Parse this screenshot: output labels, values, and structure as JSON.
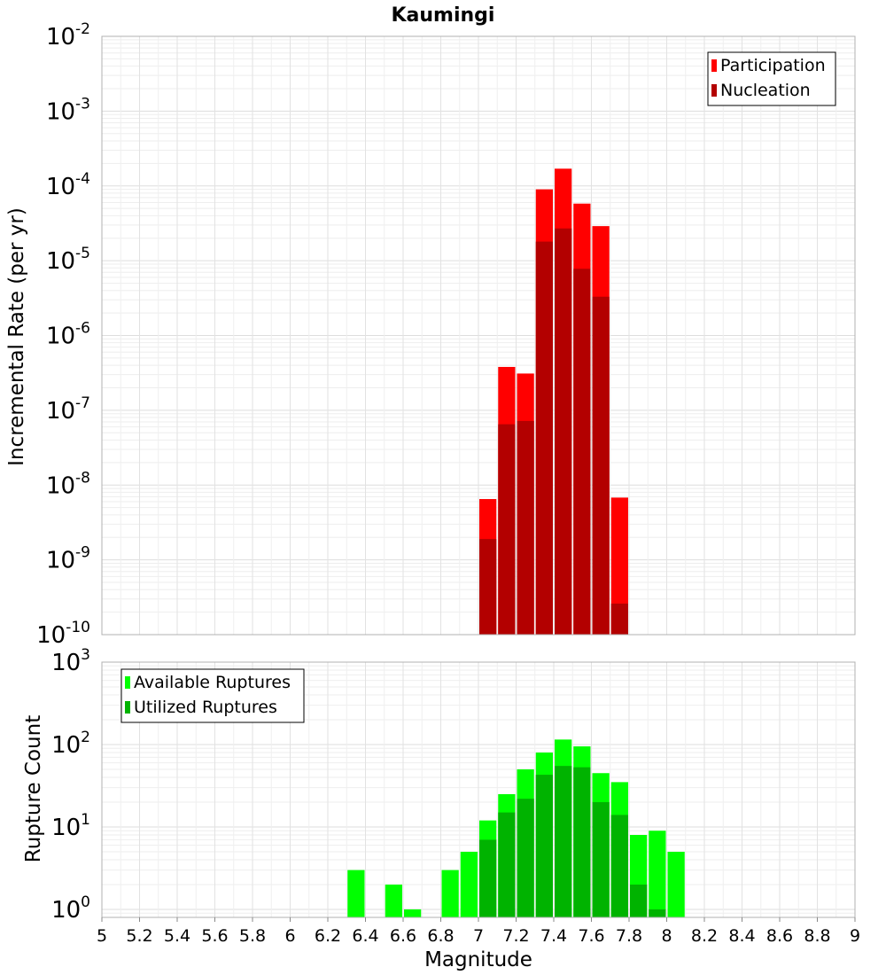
{
  "chart_data": [
    {
      "type": "bar",
      "title": "Kaumingi",
      "xlabel": "",
      "ylabel": "Incremental Rate (per yr)",
      "yscale": "log",
      "ylim": [
        1e-10,
        0.01
      ],
      "xlim": [
        5,
        9
      ],
      "bin_width": 0.1,
      "grid": true,
      "legend_position": "top-right",
      "y_tick_labels": [
        {
          "base": "10",
          "exp": "-10"
        },
        {
          "base": "10",
          "exp": "-9"
        },
        {
          "base": "10",
          "exp": "-8"
        },
        {
          "base": "10",
          "exp": "-7"
        },
        {
          "base": "10",
          "exp": "-6"
        },
        {
          "base": "10",
          "exp": "-5"
        },
        {
          "base": "10",
          "exp": "-4"
        },
        {
          "base": "10",
          "exp": "-3"
        },
        {
          "base": "10",
          "exp": "-2"
        }
      ],
      "categories": [
        "7.05",
        "7.15",
        "7.25",
        "7.35",
        "7.45",
        "7.55",
        "7.65",
        "7.75"
      ],
      "series": [
        {
          "name": "Participation",
          "color": "#ff0000",
          "values": [
            6.5e-09,
            3.8e-07,
            3.1e-07,
            9e-05,
            0.00017,
            5.8e-05,
            2.9e-05,
            6.8e-09
          ]
        },
        {
          "name": "Nucleation",
          "color": "#b30000",
          "values": [
            1.9e-09,
            6.5e-08,
            7.2e-08,
            1.8e-05,
            2.7e-05,
            7.8e-06,
            3.3e-06,
            2.6e-10
          ]
        }
      ]
    },
    {
      "type": "bar",
      "title": "",
      "xlabel": "Magnitude",
      "ylabel": "Rupture Count",
      "yscale": "log",
      "ylim": [
        0.8,
        1000
      ],
      "xlim": [
        5,
        9
      ],
      "bin_width": 0.1,
      "grid": true,
      "legend_position": "top-left",
      "x_tick_labels": [
        "5",
        "5.2",
        "5.4",
        "5.6",
        "5.8",
        "6",
        "6.2",
        "6.4",
        "6.6",
        "6.8",
        "7",
        "7.2",
        "7.4",
        "7.6",
        "7.8",
        "8",
        "8.2",
        "8.4",
        "8.6",
        "8.8",
        "9"
      ],
      "y_tick_labels": [
        {
          "base": "10",
          "exp": "0"
        },
        {
          "base": "10",
          "exp": "1"
        },
        {
          "base": "10",
          "exp": "2"
        },
        {
          "base": "10",
          "exp": "3"
        }
      ],
      "series": [
        {
          "name": "Available Ruptures",
          "color": "#00ff00",
          "x": [
            6.35,
            6.55,
            6.65,
            6.85,
            6.95,
            7.05,
            7.15,
            7.25,
            7.35,
            7.45,
            7.55,
            7.65,
            7.75,
            7.85,
            7.95,
            8.05
          ],
          "values": [
            3,
            2,
            1,
            3,
            5,
            12,
            25,
            50,
            80,
            115,
            95,
            45,
            35,
            8,
            9,
            5
          ]
        },
        {
          "name": "Utilized Ruptures",
          "color": "#00b300",
          "x": [
            7.05,
            7.15,
            7.25,
            7.35,
            7.45,
            7.55,
            7.65,
            7.75,
            7.85,
            7.95
          ],
          "values": [
            7,
            15,
            22,
            43,
            55,
            53,
            20,
            14,
            2,
            1
          ]
        }
      ]
    }
  ]
}
